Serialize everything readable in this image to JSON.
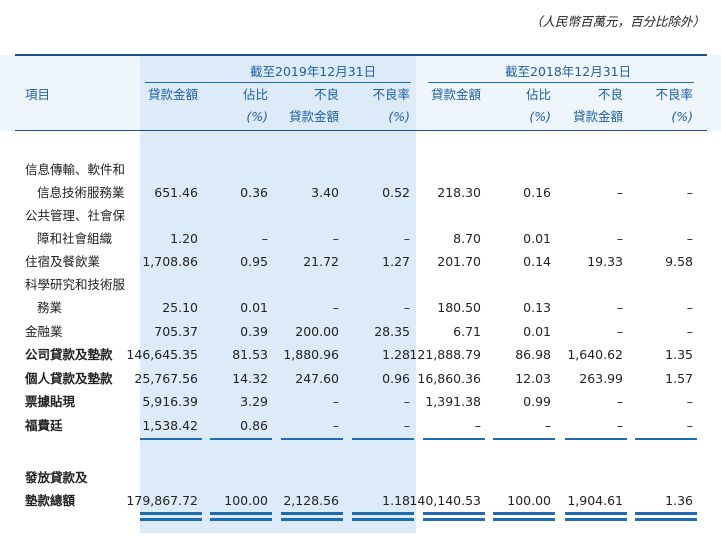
{
  "header": {
    "note": "（人民幣百萬元，百分比除外）",
    "periods": [
      "截至2019年12月31日",
      "截至2018年12月31日"
    ],
    "item": "項目",
    "columns": [
      [
        "貸款金額"
      ],
      [
        "佔比",
        "(%)"
      ],
      [
        "不良",
        "貸款金額"
      ],
      [
        "不良率",
        "(%)"
      ],
      [
        "貸款金額"
      ],
      [
        "佔比",
        "(%)"
      ],
      [
        "不良",
        "貸款金額"
      ],
      [
        "不良率",
        "(%)"
      ]
    ]
  },
  "table": {
    "rows": [
      {
        "label": [
          "信息傳輸、軟件和",
          "信息技術服務業"
        ],
        "cells": [
          "651.46",
          "0.36",
          "3.40",
          "0.52",
          "218.30",
          "0.16",
          "–",
          "–"
        ]
      },
      {
        "label": [
          "公共管理、社會保",
          "障和社會組織"
        ],
        "cells": [
          "1.20",
          "–",
          "–",
          "–",
          "8.70",
          "0.01",
          "–",
          "–"
        ]
      },
      {
        "label": [
          "住宿及餐飲業"
        ],
        "cells": [
          "1,708.86",
          "0.95",
          "21.72",
          "1.27",
          "201.70",
          "0.14",
          "19.33",
          "9.58"
        ]
      },
      {
        "label": [
          "科學研究和技術服",
          "務業"
        ],
        "cells": [
          "25.10",
          "0.01",
          "–",
          "–",
          "180.50",
          "0.13",
          "–",
          "–"
        ]
      },
      {
        "label": [
          "金融業"
        ],
        "cells": [
          "705.37",
          "0.39",
          "200.00",
          "28.35",
          "6.71",
          "0.01",
          "–",
          "–"
        ]
      },
      {
        "label": [
          "公司貸款及墊款"
        ],
        "cells": [
          "146,645.35",
          "81.53",
          "1,880.96",
          "1.28",
          "121,888.79",
          "86.98",
          "1,640.62",
          "1.35"
        ]
      },
      {
        "label": [
          "個人貸款及墊款"
        ],
        "cells": [
          "25,767.56",
          "14.32",
          "247.60",
          "0.96",
          "16,860.36",
          "12.03",
          "263.99",
          "1.57"
        ]
      },
      {
        "label": [
          "票據貼現"
        ],
        "cells": [
          "5,916.39",
          "3.29",
          "–",
          "–",
          "1,391.38",
          "0.99",
          "–",
          "–"
        ]
      },
      {
        "label": [
          "福費廷"
        ],
        "cells": [
          "1,538.42",
          "0.86",
          "–",
          "–",
          "–",
          "–",
          "–",
          "–"
        ]
      },
      {
        "label": [
          "發放貸款及",
          "墊款總額"
        ],
        "cells": [
          "179,867.72",
          "100.00",
          "2,128.56",
          "1.18",
          "140,140.53",
          "100.00",
          "1,904.61",
          "1.36"
        ]
      }
    ]
  }
}
